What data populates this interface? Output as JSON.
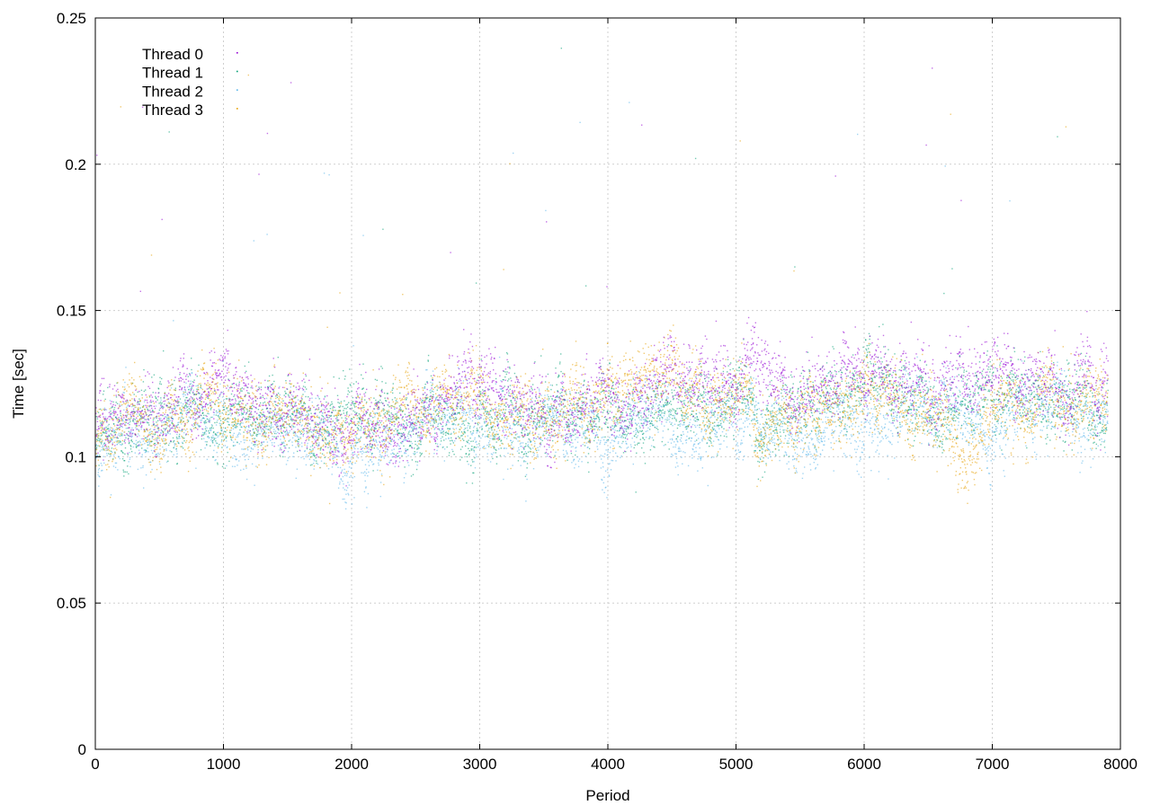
{
  "chart_data": {
    "type": "scatter",
    "title": "",
    "xlabel": "Period",
    "ylabel": "Time [sec]",
    "xlim": [
      0,
      8000
    ],
    "ylim": [
      0,
      0.25
    ],
    "xticks": [
      "0",
      "1000",
      "2000",
      "3000",
      "4000",
      "5000",
      "6000",
      "7000",
      "8000"
    ],
    "yticks": [
      "0",
      "0.05",
      "0.1",
      "0.15",
      "0.2",
      "0.25"
    ],
    "grid": true,
    "legend_position": "top-left",
    "n_periods": 7900,
    "series": [
      {
        "name": "Thread 0",
        "color": "#9400d3",
        "approx_trend": [
          [
            0,
            0.108
          ],
          [
            500,
            0.118
          ],
          [
            1000,
            0.122
          ],
          [
            1500,
            0.116
          ],
          [
            2000,
            0.112
          ],
          [
            2500,
            0.114
          ],
          [
            3000,
            0.118
          ],
          [
            3500,
            0.116
          ],
          [
            4000,
            0.12
          ],
          [
            4500,
            0.126
          ],
          [
            5000,
            0.126
          ],
          [
            5500,
            0.124
          ],
          [
            6000,
            0.128
          ],
          [
            6500,
            0.127
          ],
          [
            7000,
            0.128
          ],
          [
            7500,
            0.126
          ],
          [
            7900,
            0.126
          ]
        ]
      },
      {
        "name": "Thread 1",
        "color": "#009e73",
        "approx_trend": [
          [
            0,
            0.106
          ],
          [
            500,
            0.114
          ],
          [
            1000,
            0.116
          ],
          [
            1500,
            0.112
          ],
          [
            2000,
            0.11
          ],
          [
            2500,
            0.112
          ],
          [
            3000,
            0.114
          ],
          [
            3500,
            0.113
          ],
          [
            4000,
            0.113
          ],
          [
            4500,
            0.116
          ],
          [
            5000,
            0.117
          ],
          [
            5500,
            0.116
          ],
          [
            6000,
            0.12
          ],
          [
            6500,
            0.118
          ],
          [
            7000,
            0.12
          ],
          [
            7500,
            0.118
          ],
          [
            7900,
            0.118
          ]
        ]
      },
      {
        "name": "Thread 2",
        "color": "#56b4e9",
        "approx_trend": [
          [
            0,
            0.104
          ],
          [
            500,
            0.112
          ],
          [
            1000,
            0.112
          ],
          [
            1500,
            0.108
          ],
          [
            2000,
            0.104
          ],
          [
            2500,
            0.11
          ],
          [
            3000,
            0.11
          ],
          [
            3500,
            0.112
          ],
          [
            4000,
            0.108
          ],
          [
            4500,
            0.112
          ],
          [
            5000,
            0.114
          ],
          [
            5500,
            0.112
          ],
          [
            6000,
            0.116
          ],
          [
            6500,
            0.114
          ],
          [
            7000,
            0.116
          ],
          [
            7500,
            0.114
          ],
          [
            7900,
            0.114
          ]
        ]
      },
      {
        "name": "Thread 3",
        "color": "#e69f00",
        "approx_trend": [
          [
            0,
            0.106
          ],
          [
            500,
            0.116
          ],
          [
            1000,
            0.118
          ],
          [
            1500,
            0.114
          ],
          [
            2000,
            0.112
          ],
          [
            2500,
            0.114
          ],
          [
            3000,
            0.116
          ],
          [
            3500,
            0.114
          ],
          [
            4000,
            0.116
          ],
          [
            4500,
            0.124
          ],
          [
            5000,
            0.12
          ],
          [
            5200,
            0.102
          ],
          [
            5500,
            0.114
          ],
          [
            6000,
            0.118
          ],
          [
            6500,
            0.116
          ],
          [
            6800,
            0.104
          ],
          [
            7000,
            0.118
          ],
          [
            7500,
            0.12
          ],
          [
            7900,
            0.118
          ]
        ]
      }
    ]
  }
}
